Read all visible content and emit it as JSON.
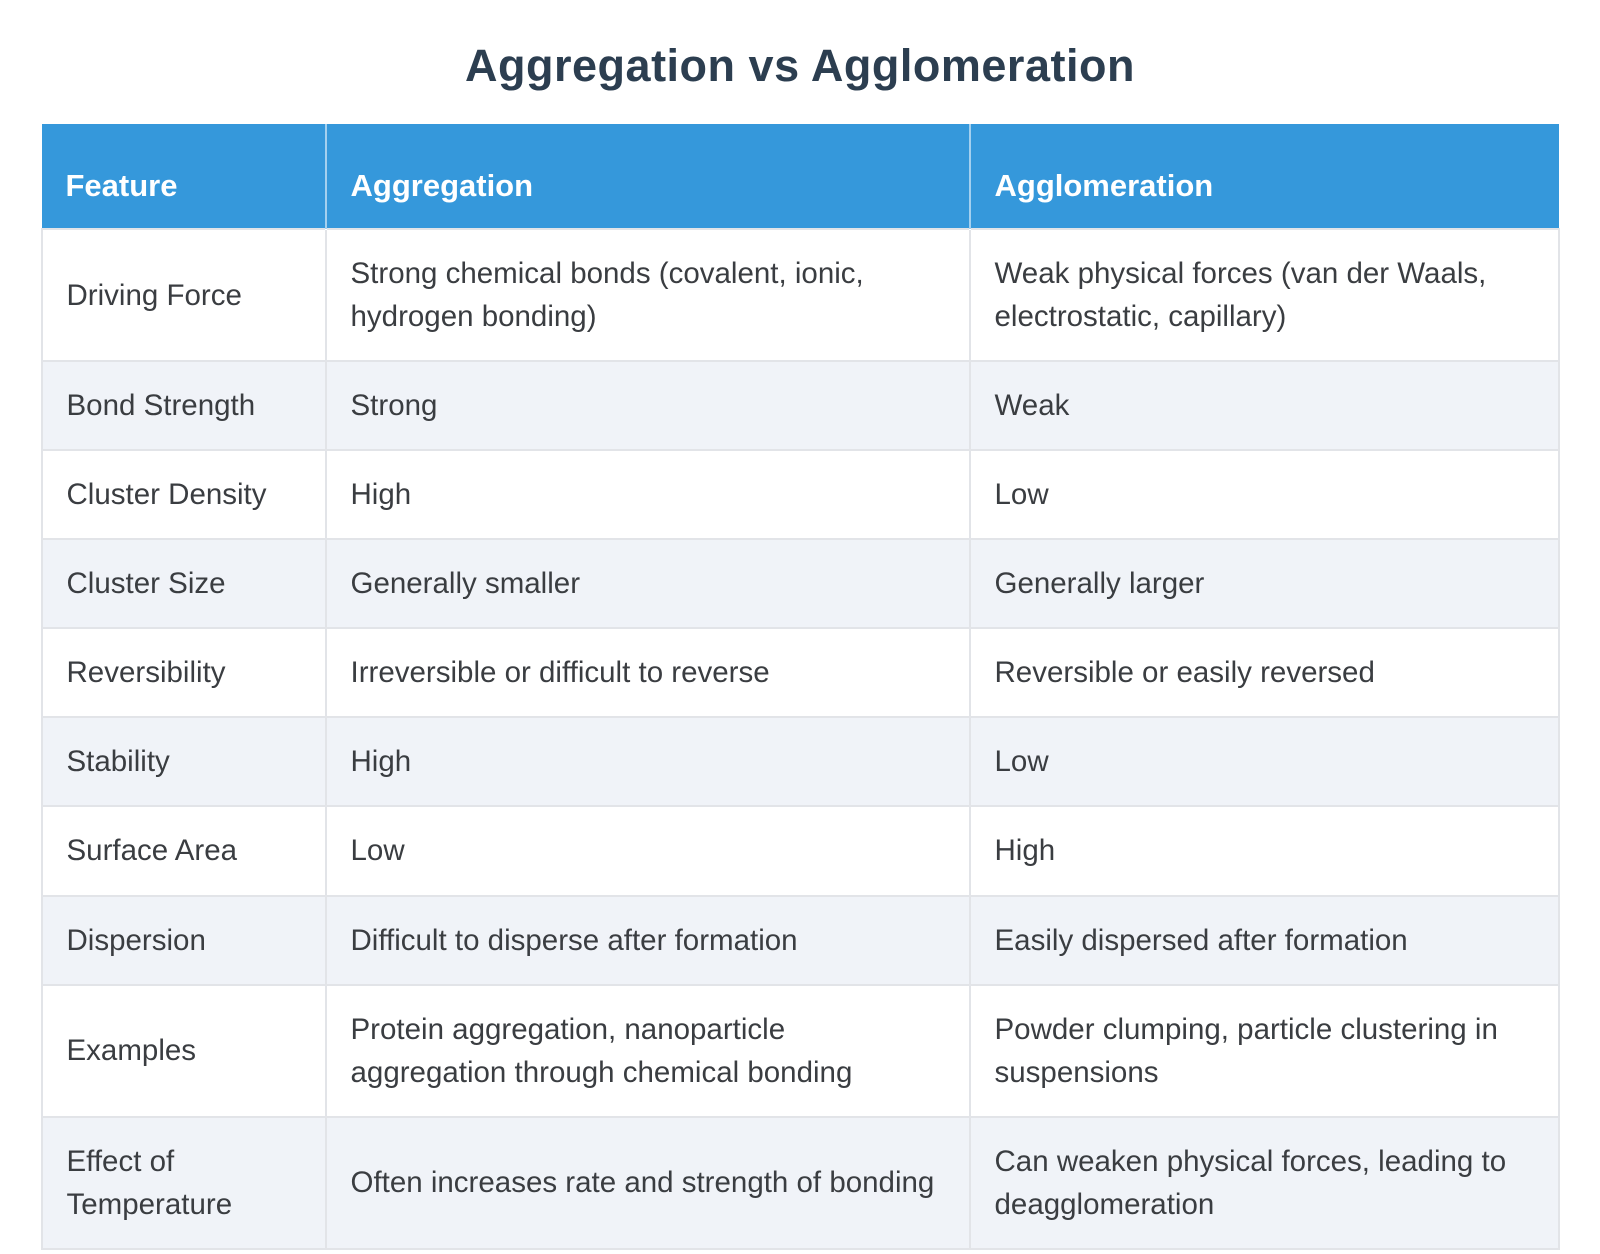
{
  "page": {
    "title": "Aggregation vs Agglomeration"
  },
  "colors": {
    "header_bg": "#3598db",
    "header_text": "#ffffff",
    "title_text": "#2c3e50",
    "body_text": "#3a3d41",
    "row_bg": "#ffffff",
    "row_alt_bg": "#f0f3f8",
    "border": "#e2e4e8"
  },
  "table": {
    "columns": [
      "Feature",
      "Aggregation",
      "Agglomeration"
    ],
    "rows": [
      {
        "feature": "Driving Force",
        "aggregation": "Strong chemical bonds (covalent, ionic, hydrogen bonding)",
        "agglomeration": "Weak physical forces (van der Waals, electrostatic, capillary)"
      },
      {
        "feature": "Bond Strength",
        "aggregation": "Strong",
        "agglomeration": "Weak"
      },
      {
        "feature": "Cluster Density",
        "aggregation": "High",
        "agglomeration": "Low"
      },
      {
        "feature": "Cluster Size",
        "aggregation": "Generally smaller",
        "agglomeration": "Generally larger"
      },
      {
        "feature": "Reversibility",
        "aggregation": "Irreversible or difficult to reverse",
        "agglomeration": "Reversible or easily reversed"
      },
      {
        "feature": "Stability",
        "aggregation": "High",
        "agglomeration": "Low"
      },
      {
        "feature": "Surface Area",
        "aggregation": "Low",
        "agglomeration": "High"
      },
      {
        "feature": "Dispersion",
        "aggregation": "Difficult to disperse after formation",
        "agglomeration": "Easily dispersed after formation"
      },
      {
        "feature": "Examples",
        "aggregation": "Protein aggregation, nanoparticle aggregation through chemical bonding",
        "agglomeration": "Powder clumping, particle clustering in suspensions"
      },
      {
        "feature": "Effect of Temperature",
        "aggregation": "Often increases rate and strength of bonding",
        "agglomeration": "Can weaken physical forces, leading to deagglomeration"
      }
    ]
  }
}
